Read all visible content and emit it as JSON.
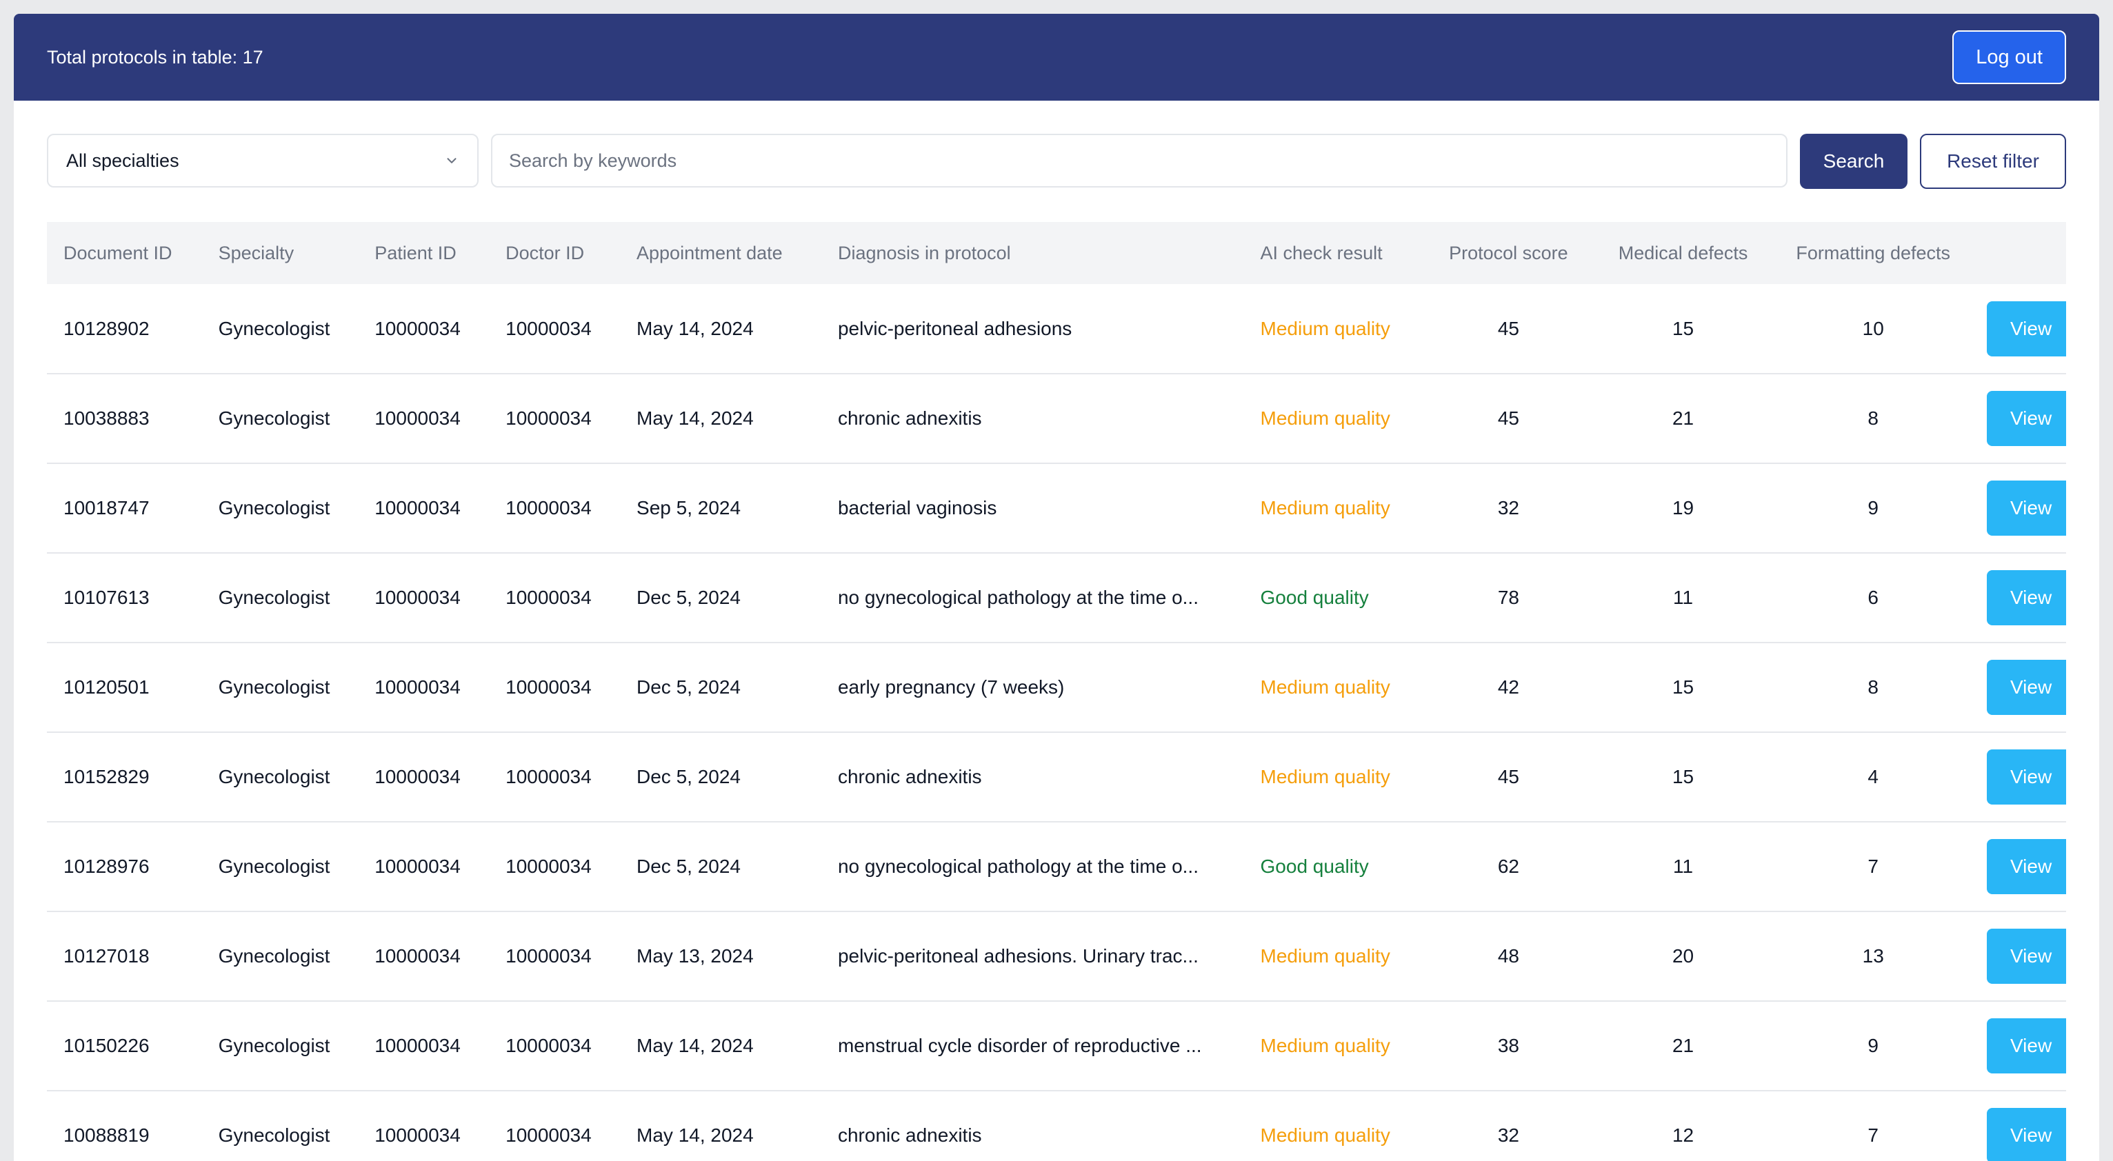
{
  "header": {
    "total_text": "Total protocols in table: 17",
    "logout_label": "Log out"
  },
  "filters": {
    "specialty_selected": "All specialties",
    "search_placeholder": "Search by keywords",
    "search_label": "Search",
    "reset_label": "Reset filter"
  },
  "table": {
    "columns": [
      "Document ID",
      "Specialty",
      "Patient ID",
      "Doctor ID",
      "Appointment date",
      "Diagnosis in protocol",
      "AI check result",
      "Protocol score",
      "Medical defects",
      "Formatting defects"
    ],
    "view_label": "View",
    "rows": [
      {
        "doc_id": "10128902",
        "specialty": "Gynecologist",
        "patient_id": "10000034",
        "doctor_id": "10000034",
        "date": "May 14, 2024",
        "diagnosis": "pelvic-peritoneal adhesions",
        "ai_result": "Medium quality",
        "quality": "medium",
        "score": "45",
        "medical": "15",
        "formatting": "10"
      },
      {
        "doc_id": "10038883",
        "specialty": "Gynecologist",
        "patient_id": "10000034",
        "doctor_id": "10000034",
        "date": "May 14, 2024",
        "diagnosis": "chronic adnexitis",
        "ai_result": "Medium quality",
        "quality": "medium",
        "score": "45",
        "medical": "21",
        "formatting": "8"
      },
      {
        "doc_id": "10018747",
        "specialty": "Gynecologist",
        "patient_id": "10000034",
        "doctor_id": "10000034",
        "date": "Sep 5, 2024",
        "diagnosis": "bacterial vaginosis",
        "ai_result": "Medium quality",
        "quality": "medium",
        "score": "32",
        "medical": "19",
        "formatting": "9"
      },
      {
        "doc_id": "10107613",
        "specialty": "Gynecologist",
        "patient_id": "10000034",
        "doctor_id": "10000034",
        "date": "Dec 5, 2024",
        "diagnosis": "no gynecological pathology at the time o...",
        "ai_result": "Good quality",
        "quality": "good",
        "score": "78",
        "medical": "11",
        "formatting": "6"
      },
      {
        "doc_id": "10120501",
        "specialty": "Gynecologist",
        "patient_id": "10000034",
        "doctor_id": "10000034",
        "date": "Dec 5, 2024",
        "diagnosis": "early pregnancy (7 weeks)",
        "ai_result": "Medium quality",
        "quality": "medium",
        "score": "42",
        "medical": "15",
        "formatting": "8"
      },
      {
        "doc_id": "10152829",
        "specialty": "Gynecologist",
        "patient_id": "10000034",
        "doctor_id": "10000034",
        "date": "Dec 5, 2024",
        "diagnosis": "chronic adnexitis",
        "ai_result": "Medium quality",
        "quality": "medium",
        "score": "45",
        "medical": "15",
        "formatting": "4"
      },
      {
        "doc_id": "10128976",
        "specialty": "Gynecologist",
        "patient_id": "10000034",
        "doctor_id": "10000034",
        "date": "Dec 5, 2024",
        "diagnosis": "no gynecological pathology at the time o...",
        "ai_result": "Good quality",
        "quality": "good",
        "score": "62",
        "medical": "11",
        "formatting": "7"
      },
      {
        "doc_id": "10127018",
        "specialty": "Gynecologist",
        "patient_id": "10000034",
        "doctor_id": "10000034",
        "date": "May 13, 2024",
        "diagnosis": "pelvic-peritoneal adhesions. Urinary trac...",
        "ai_result": "Medium quality",
        "quality": "medium",
        "score": "48",
        "medical": "20",
        "formatting": "13"
      },
      {
        "doc_id": "10150226",
        "specialty": "Gynecologist",
        "patient_id": "10000034",
        "doctor_id": "10000034",
        "date": "May 14, 2024",
        "diagnosis": "menstrual cycle disorder of reproductive ...",
        "ai_result": "Medium quality",
        "quality": "medium",
        "score": "38",
        "medical": "21",
        "formatting": "9"
      },
      {
        "doc_id": "10088819",
        "specialty": "Gynecologist",
        "patient_id": "10000034",
        "doctor_id": "10000034",
        "date": "May 14, 2024",
        "diagnosis": "chronic adnexitis",
        "ai_result": "Medium quality",
        "quality": "medium",
        "score": "32",
        "medical": "12",
        "formatting": "7"
      }
    ]
  },
  "colors": {
    "header_bg": "#2d3a7b",
    "logout_bg": "#2563eb",
    "view_button": "#29b6f6",
    "medium_quality": "#f59e0b",
    "good_quality": "#15803d"
  },
  "icons": {
    "dropdown": "chevron-down-icon"
  }
}
